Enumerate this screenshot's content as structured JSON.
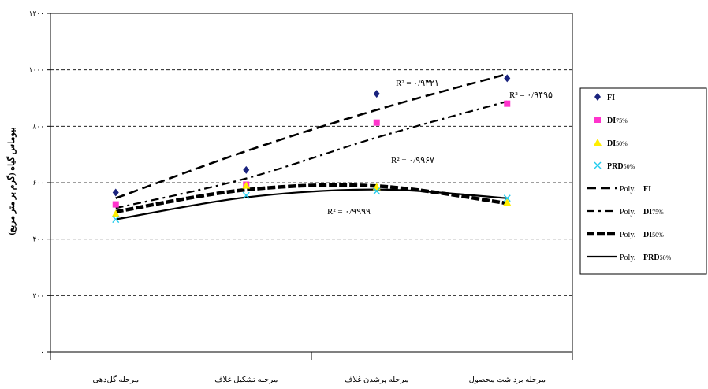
{
  "chart_data": {
    "type": "scatter",
    "ylabel": "بیوماس گیاه (گرم بر متر مربع)",
    "ylim": [
      0,
      1200
    ],
    "yticks": [
      "۰",
      "۲۰۰",
      "۴۰۰",
      "۶۰۰",
      "۸۰۰",
      "۱۰۰۰",
      "۱۲۰۰"
    ],
    "categories": [
      "مرحله گل‌دهی",
      "مرحله تشکیل غلاف",
      "مرحله پرشدن غلاف",
      "مرحله برداشت محصول"
    ],
    "grid": "horizontal-dashed",
    "legend_position": "right",
    "series": [
      {
        "name": "FI",
        "values": [
          565,
          645,
          915,
          970
        ],
        "marker": "diamond",
        "color": "#1a237e",
        "trend": {
          "label": "Poly. FI",
          "style": "long-dash",
          "values": [
            545,
            712,
            858,
            985
          ]
        }
      },
      {
        "name": "DI75%",
        "values": [
          523,
          593,
          813,
          880
        ],
        "marker": "square",
        "color": "#ff33cc",
        "trend": {
          "label": "Poly. DI75%",
          "style": "dash-dot",
          "values": [
            510,
            615,
            760,
            888
          ]
        }
      },
      {
        "name": "DI50%",
        "values": [
          490,
          590,
          585,
          530
        ],
        "marker": "triangle",
        "color": "#ffee00",
        "trend": {
          "label": "Poly. DI50%",
          "style": "thick-dash",
          "values": [
            497,
            575,
            588,
            527
          ]
        }
      },
      {
        "name": "PRD50%",
        "values": [
          470,
          555,
          570,
          545
        ],
        "marker": "x",
        "color": "#22ccee",
        "trend": {
          "label": "Poly. PRD50%",
          "style": "solid",
          "values": [
            470,
            548,
            576,
            545
          ]
        }
      }
    ],
    "annotations": [
      {
        "text": "R² = ۰/۹۳۲۱"
      },
      {
        "text": "R² = ۰/۹۴۹۵"
      },
      {
        "text": "R² = ۰/۹۹۶۷"
      },
      {
        "text": "R² = ۰/۹۹۹۹"
      }
    ]
  }
}
